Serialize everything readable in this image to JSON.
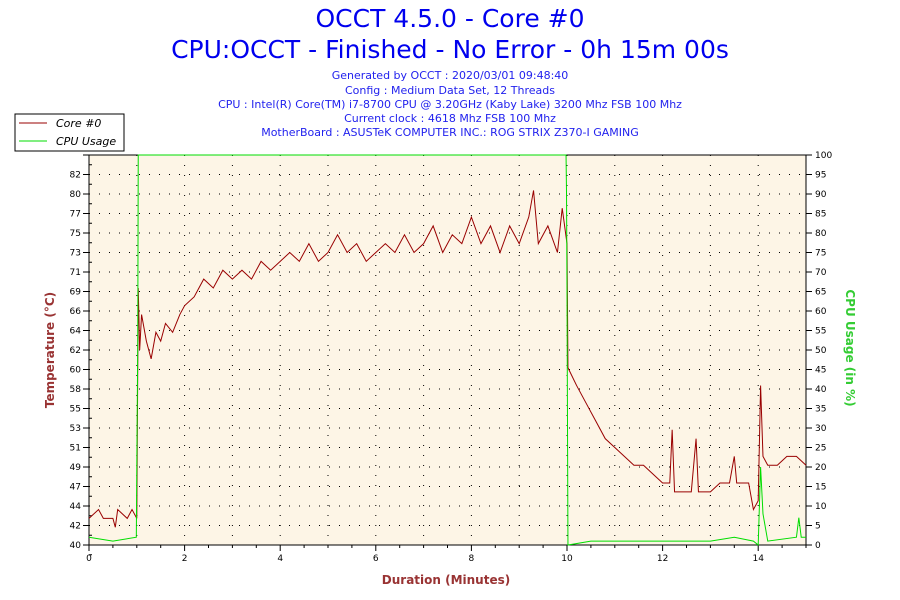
{
  "chart_data": {
    "type": "line",
    "title": "OCCT 4.5.0 - Core #0",
    "subtitle": "CPU:OCCT - Finished - No Error - 0h 15m 00s",
    "info_lines": [
      "Generated by OCCT : 2020/03/01 09:48:40",
      "Config : Medium Data Set, 12 Threads",
      "CPU : Intel(R) Core(TM) i7-8700 CPU @ 3.20GHz (Kaby Lake) 3200 Mhz FSB 100 Mhz",
      "Current clock : 4618 Mhz FSB 100 Mhz",
      "MotherBoard : ASUSTeK COMPUTER INC.: ROG STRIX Z370-I GAMING"
    ],
    "xlabel": "Duration (Minutes)",
    "ylabel": "Temperature (°C)",
    "y2label": "CPU Usage (in %)",
    "xlim": [
      0,
      15
    ],
    "ylim": [
      40,
      84
    ],
    "y2lim": [
      0,
      100
    ],
    "x_ticks": [
      "0",
      "2",
      "4",
      "6",
      "8",
      "10",
      "12",
      "14"
    ],
    "y_ticks": [
      "40",
      "42",
      "44",
      "47",
      "49",
      "51",
      "53",
      "55",
      "58",
      "60",
      "62",
      "64",
      "66",
      "69",
      "71",
      "73",
      "75",
      "77",
      "80",
      "82"
    ],
    "y2_ticks": [
      "0",
      "5",
      "10",
      "15",
      "20",
      "25",
      "30",
      "35",
      "40",
      "45",
      "50",
      "55",
      "60",
      "65",
      "70",
      "75",
      "80",
      "85",
      "90",
      "95",
      "100"
    ],
    "grid": true,
    "legend_position": "top-left",
    "colors": {
      "temperature": "#990000",
      "cpu": "#00dd00",
      "plot_bg": "#fdf5e6",
      "title": "#0000ee",
      "ylabel": "#993333",
      "y2label": "#33cc33"
    },
    "series": [
      {
        "name": "Core #0",
        "axis": "left",
        "x": [
          0,
          0.2,
          0.3,
          0.5,
          0.55,
          0.6,
          0.8,
          0.9,
          1.0,
          1.03,
          1.06,
          1.1,
          1.2,
          1.3,
          1.4,
          1.5,
          1.6,
          1.75,
          1.9,
          2.0,
          2.2,
          2.4,
          2.6,
          2.8,
          3.0,
          3.2,
          3.4,
          3.6,
          3.8,
          4.0,
          4.2,
          4.4,
          4.6,
          4.8,
          5.0,
          5.2,
          5.4,
          5.6,
          5.8,
          6.0,
          6.2,
          6.4,
          6.6,
          6.8,
          7.0,
          7.2,
          7.4,
          7.6,
          7.8,
          8.0,
          8.2,
          8.4,
          8.6,
          8.8,
          9.0,
          9.2,
          9.3,
          9.4,
          9.6,
          9.8,
          9.9,
          10.0,
          10.02,
          10.2,
          10.4,
          10.6,
          10.8,
          11.0,
          11.2,
          11.4,
          11.6,
          11.8,
          12.0,
          12.15,
          12.2,
          12.25,
          12.5,
          12.6,
          12.7,
          12.75,
          13.0,
          13.2,
          13.4,
          13.5,
          13.55,
          13.8,
          13.9,
          14.0,
          14.05,
          14.1,
          14.2,
          14.4,
          14.6,
          14.8,
          15
        ],
        "values": [
          43,
          44,
          43,
          43,
          42,
          44,
          43,
          44,
          43,
          69,
          62,
          66,
          63,
          61,
          64,
          63,
          65,
          64,
          66,
          67,
          68,
          70,
          69,
          71,
          70,
          71,
          70,
          72,
          71,
          72,
          73,
          72,
          74,
          72,
          73,
          75,
          73,
          74,
          72,
          73,
          74,
          73,
          75,
          73,
          74,
          76,
          73,
          75,
          74,
          77,
          74,
          76,
          73,
          76,
          74,
          77,
          80,
          74,
          76,
          73,
          78,
          74,
          60,
          58,
          56,
          54,
          52,
          51,
          50,
          49,
          49,
          48,
          47,
          47,
          53,
          46,
          46,
          46,
          52,
          46,
          46,
          47,
          47,
          50,
          47,
          47,
          44,
          45,
          58,
          50,
          49,
          49,
          50,
          50,
          49
        ]
      },
      {
        "name": "CPU Usage",
        "axis": "right",
        "x": [
          0,
          0.5,
          0.99,
          1.0,
          1.02,
          1.03,
          9.98,
          9.99,
          10.0,
          10.02,
          10.5,
          11,
          12,
          13,
          13.5,
          13.9,
          14,
          14.05,
          14.1,
          14.2,
          14.8,
          14.85,
          14.9,
          15
        ],
        "values": [
          2,
          1,
          2,
          20,
          52,
          100,
          100,
          90,
          65,
          0,
          1,
          1,
          1,
          1,
          2,
          1,
          0,
          20,
          8,
          1,
          2,
          7,
          2,
          2
        ]
      }
    ]
  }
}
